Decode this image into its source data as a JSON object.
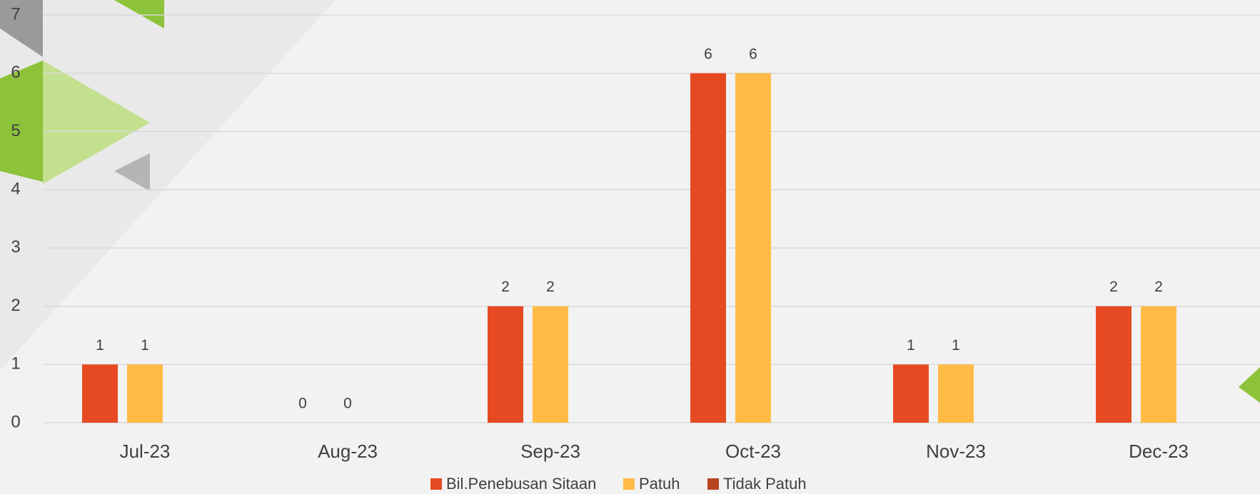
{
  "chart_data": {
    "type": "bar",
    "categories": [
      "Jul-23",
      "Aug-23",
      "Sep-23",
      "Oct-23",
      "Nov-23",
      "Dec-23"
    ],
    "series": [
      {
        "name": "Bil.Penebusan Sitaan",
        "color": "#e64a22",
        "values": [
          1,
          0,
          2,
          6,
          1,
          2
        ]
      },
      {
        "name": "Patuh",
        "color": "#ffbb45",
        "values": [
          1,
          0,
          2,
          6,
          1,
          2
        ]
      },
      {
        "name": "Tidak Patuh",
        "color": "#b5441f",
        "values": [
          null,
          null,
          null,
          null,
          null,
          null
        ]
      }
    ],
    "ylim": [
      0,
      7
    ],
    "yticks": [
      0,
      1,
      2,
      3,
      4,
      5,
      6,
      7
    ],
    "grid": true,
    "data_labels": true,
    "legend": "bottom"
  }
}
